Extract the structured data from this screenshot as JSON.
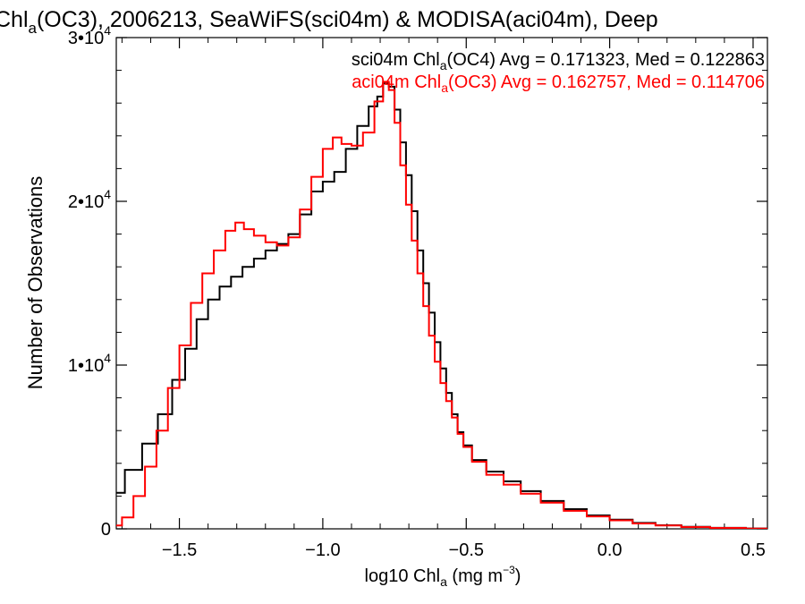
{
  "chart_data": {
    "type": "line",
    "title_parts": {
      "pre": "Chl",
      "sub": "a",
      "post": "(OC3), 2006213, SeaWiFS(sci04m) & MODISA(aci04m), Deep"
    },
    "xlabel_parts": {
      "pre": "log10 Chl",
      "sub": "a",
      "mid": " (mg m",
      "sup": "−3",
      "post": ")"
    },
    "ylabel": "Number of Observations",
    "xlim": [
      -1.72,
      0.55
    ],
    "ylim": [
      0,
      30000
    ],
    "xticks": [
      {
        "value": -1.5,
        "label": "−1.5"
      },
      {
        "value": -1.0,
        "label": "−1.0"
      },
      {
        "value": -0.5,
        "label": "−0.5"
      },
      {
        "value": 0.0,
        "label": "0.0"
      },
      {
        "value": 0.5,
        "label": "0.5"
      }
    ],
    "yticks": [
      {
        "value": 0,
        "base": "0",
        "exp": ""
      },
      {
        "value": 10000,
        "base": "1•10",
        "exp": "4"
      },
      {
        "value": 20000,
        "base": "2•10",
        "exp": "4"
      },
      {
        "value": 30000,
        "base": "3•10",
        "exp": "4"
      }
    ],
    "grid": false,
    "legend_position": "top-right",
    "series": [
      {
        "legend": {
          "pre": "sci04m Chl",
          "sub": "a",
          "post": "(OC4) Avg = 0.171323, Med = 0.122863"
        },
        "color": "#000000",
        "points": [
          [
            -1.72,
            2200
          ],
          [
            -1.66,
            3600
          ],
          [
            -1.6,
            5200
          ],
          [
            -1.55,
            7000
          ],
          [
            -1.5,
            9100
          ],
          [
            -1.46,
            11000
          ],
          [
            -1.42,
            12800
          ],
          [
            -1.38,
            14000
          ],
          [
            -1.34,
            14800
          ],
          [
            -1.3,
            15400
          ],
          [
            -1.26,
            16000
          ],
          [
            -1.22,
            16500
          ],
          [
            -1.18,
            17000
          ],
          [
            -1.14,
            17400
          ],
          [
            -1.1,
            18000
          ],
          [
            -1.06,
            19200
          ],
          [
            -1.02,
            20600
          ],
          [
            -0.98,
            21200
          ],
          [
            -0.94,
            21800
          ],
          [
            -0.9,
            23200
          ],
          [
            -0.86,
            24600
          ],
          [
            -0.82,
            25800
          ],
          [
            -0.8,
            26400
          ],
          [
            -0.78,
            27200
          ],
          [
            -0.76,
            27000
          ],
          [
            -0.74,
            25600
          ],
          [
            -0.72,
            23600
          ],
          [
            -0.7,
            21600
          ],
          [
            -0.68,
            19400
          ],
          [
            -0.66,
            17000
          ],
          [
            -0.64,
            15000
          ],
          [
            -0.62,
            13200
          ],
          [
            -0.6,
            11400
          ],
          [
            -0.58,
            9800
          ],
          [
            -0.56,
            8300
          ],
          [
            -0.54,
            7000
          ],
          [
            -0.52,
            5900
          ],
          [
            -0.5,
            5100
          ],
          [
            -0.46,
            4200
          ],
          [
            -0.4,
            3500
          ],
          [
            -0.34,
            2900
          ],
          [
            -0.28,
            2300
          ],
          [
            -0.2,
            1700
          ],
          [
            -0.12,
            1200
          ],
          [
            -0.04,
            820
          ],
          [
            0.04,
            560
          ],
          [
            0.12,
            360
          ],
          [
            0.2,
            220
          ],
          [
            0.3,
            120
          ],
          [
            0.4,
            60
          ],
          [
            0.55,
            20
          ]
        ]
      },
      {
        "legend": {
          "pre": "aci04m Chl",
          "sub": "a",
          "post": "(OC3) Avg = 0.162757, Med = 0.114706"
        },
        "color": "#ff0000",
        "points": [
          [
            -1.72,
            200
          ],
          [
            -1.68,
            700
          ],
          [
            -1.64,
            2000
          ],
          [
            -1.6,
            3800
          ],
          [
            -1.56,
            6000
          ],
          [
            -1.52,
            8600
          ],
          [
            -1.48,
            11200
          ],
          [
            -1.44,
            13800
          ],
          [
            -1.4,
            15600
          ],
          [
            -1.36,
            17000
          ],
          [
            -1.32,
            18200
          ],
          [
            -1.29,
            18700
          ],
          [
            -1.26,
            18300
          ],
          [
            -1.22,
            17900
          ],
          [
            -1.18,
            17500
          ],
          [
            -1.14,
            17300
          ],
          [
            -1.1,
            17800
          ],
          [
            -1.06,
            19500
          ],
          [
            -1.02,
            21500
          ],
          [
            -0.98,
            23200
          ],
          [
            -0.95,
            23900
          ],
          [
            -0.92,
            23500
          ],
          [
            -0.88,
            23400
          ],
          [
            -0.84,
            24200
          ],
          [
            -0.8,
            26100
          ],
          [
            -0.78,
            27300
          ],
          [
            -0.76,
            26800
          ],
          [
            -0.74,
            24800
          ],
          [
            -0.72,
            22200
          ],
          [
            -0.7,
            19800
          ],
          [
            -0.68,
            17600
          ],
          [
            -0.66,
            15600
          ],
          [
            -0.64,
            13600
          ],
          [
            -0.62,
            11800
          ],
          [
            -0.6,
            10200
          ],
          [
            -0.58,
            8900
          ],
          [
            -0.56,
            7800
          ],
          [
            -0.54,
            6800
          ],
          [
            -0.52,
            5800
          ],
          [
            -0.5,
            5000
          ],
          [
            -0.46,
            4100
          ],
          [
            -0.4,
            3300
          ],
          [
            -0.34,
            2700
          ],
          [
            -0.28,
            2150
          ],
          [
            -0.2,
            1600
          ],
          [
            -0.12,
            1100
          ],
          [
            -0.04,
            760
          ],
          [
            0.04,
            520
          ],
          [
            0.12,
            330
          ],
          [
            0.2,
            200
          ],
          [
            0.3,
            110
          ],
          [
            0.4,
            55
          ],
          [
            0.55,
            15
          ]
        ]
      }
    ]
  }
}
